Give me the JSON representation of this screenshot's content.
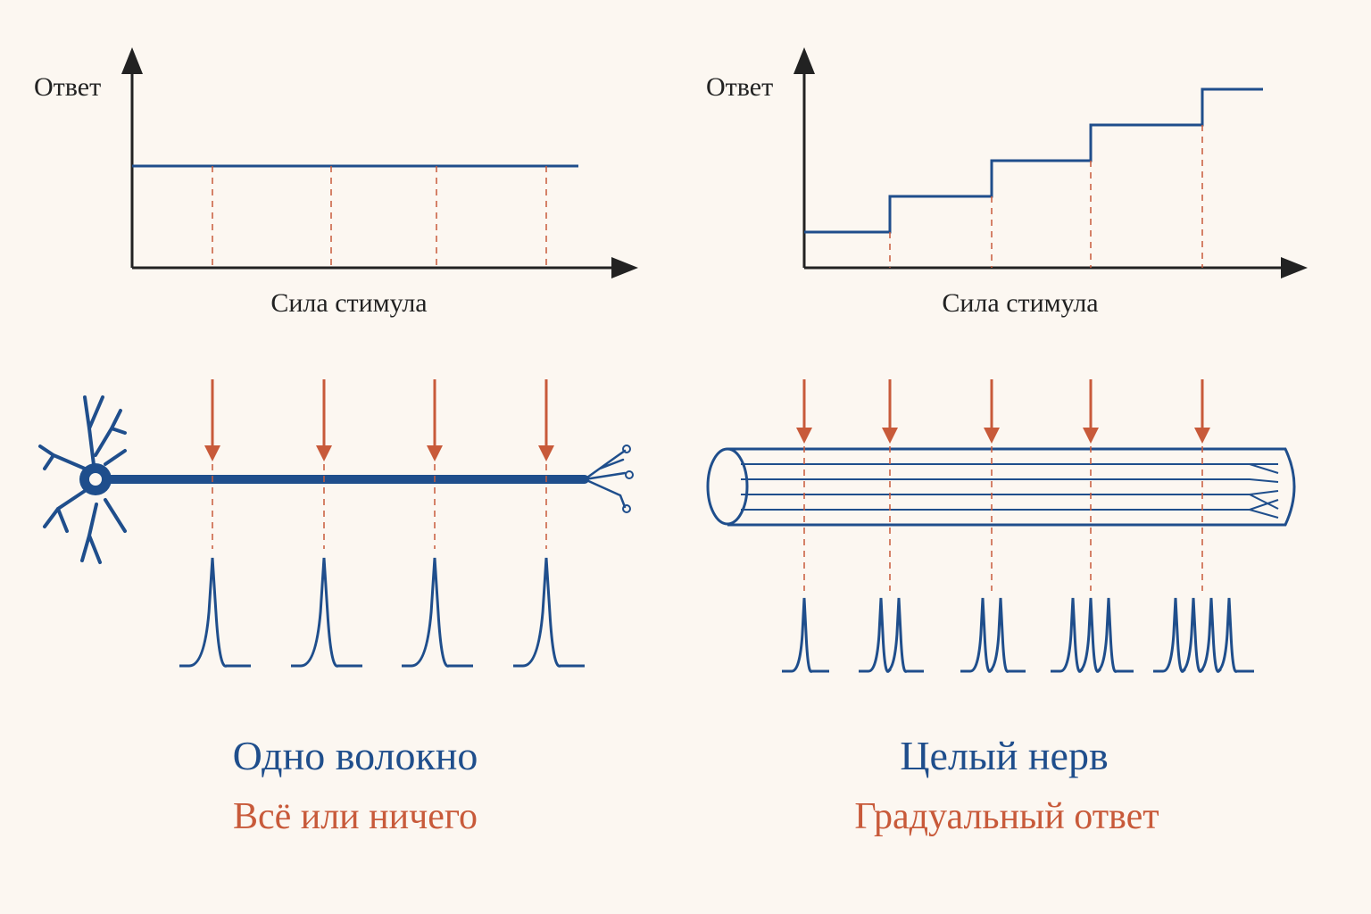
{
  "panels": [
    {
      "y_label": "Ответ",
      "x_label": "Сила стимула",
      "title": "Одно волокно",
      "subtitle": "Всё или ничего"
    },
    {
      "y_label": "Ответ",
      "x_label": "Сила стимула",
      "title": "Целый нерв",
      "subtitle": "Градуальный ответ"
    }
  ]
}
